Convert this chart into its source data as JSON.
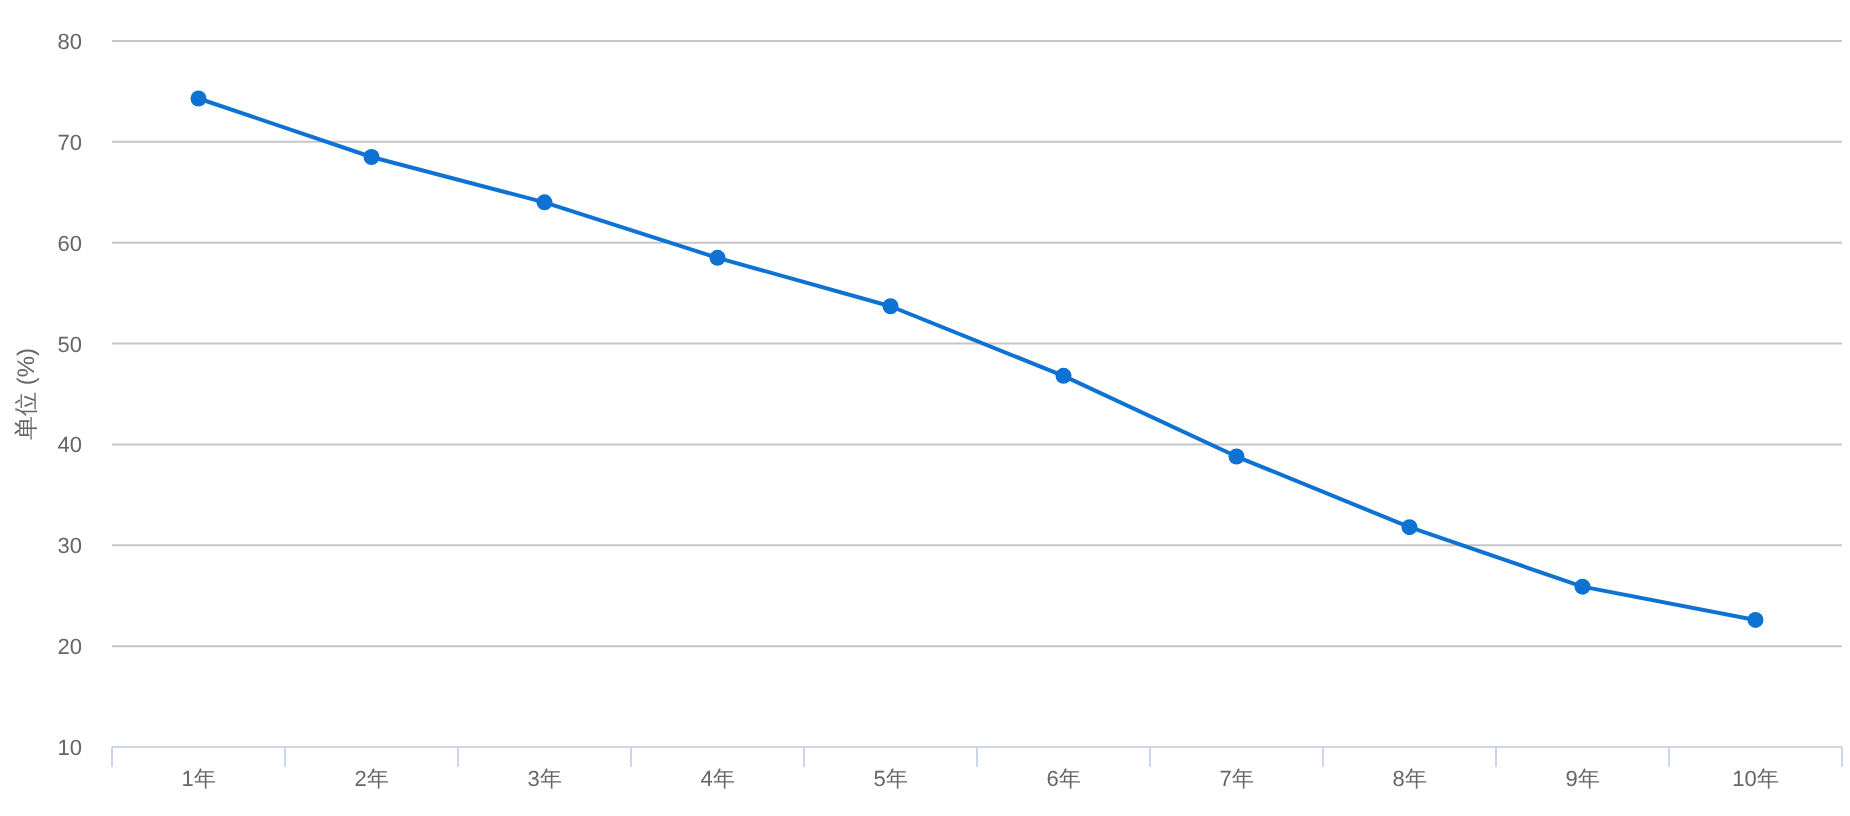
{
  "chart_data": {
    "type": "line",
    "categories": [
      "1年",
      "2年",
      "3年",
      "4年",
      "5年",
      "6年",
      "7年",
      "8年",
      "9年",
      "10年"
    ],
    "ylabel": "单位 (%)",
    "series": [
      {
        "color": "#0d72d2",
        "values": [
          74.3,
          68.5,
          64.0,
          58.5,
          53.7,
          46.8,
          38.8,
          31.8,
          25.9,
          22.6
        ]
      }
    ],
    "ylim": [
      10,
      80
    ],
    "yticks": [
      10,
      20,
      30,
      40,
      50,
      60,
      70,
      80
    ],
    "grid": "y",
    "marker": "circle",
    "line_style": "solid"
  }
}
